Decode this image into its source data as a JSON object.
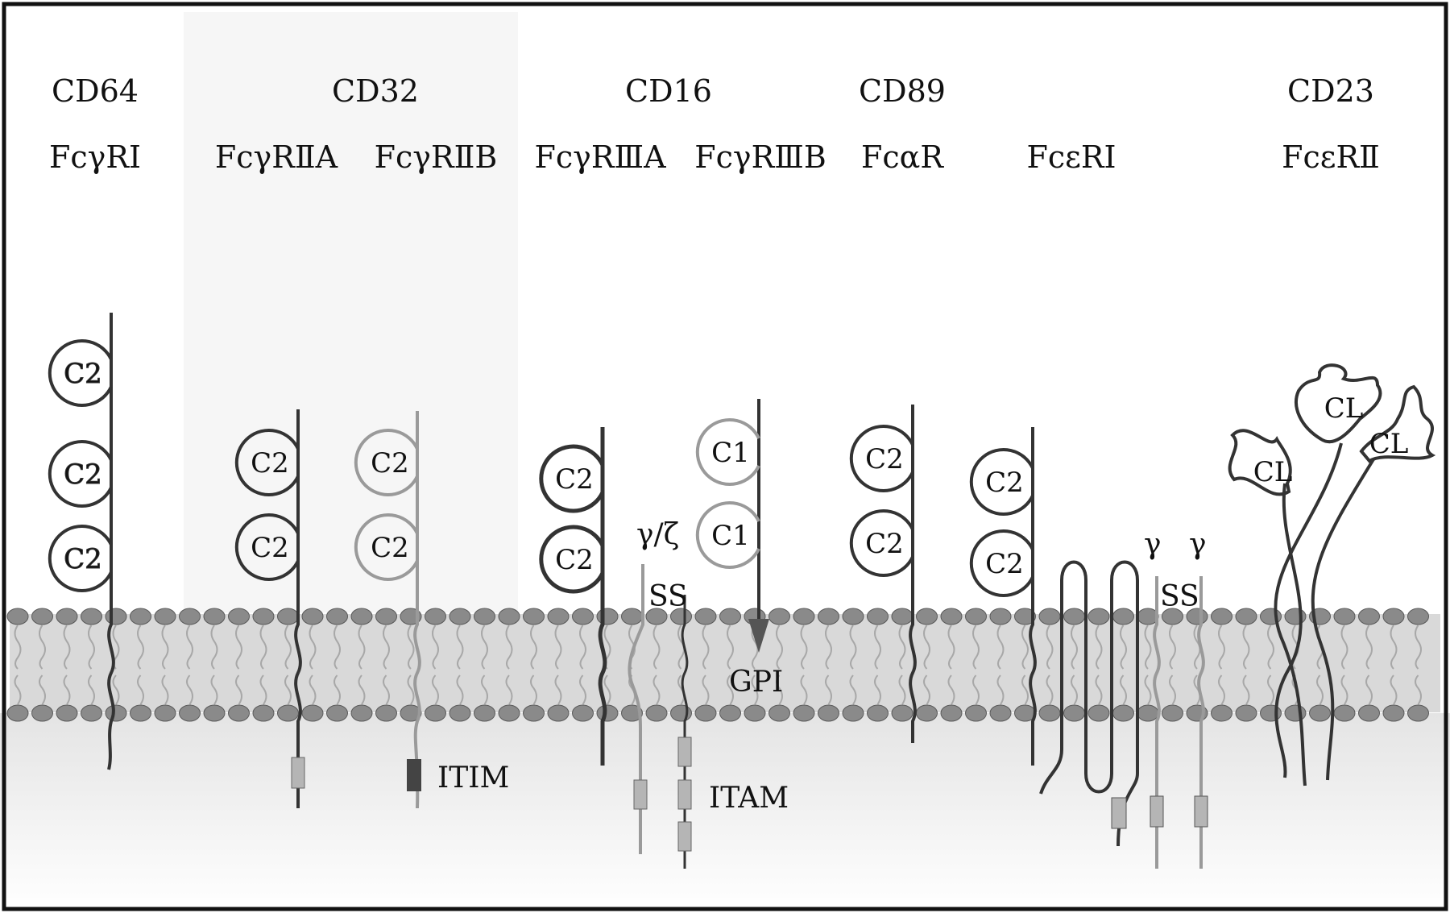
{
  "receptors": [
    {
      "cd": "CD64",
      "name": "FcγRⅠ"
    },
    {
      "cd": "CD32",
      "names": [
        "FcγRⅡA",
        "FcγRⅡB"
      ]
    },
    {
      "cd": "CD16",
      "names": [
        "FcγRⅢA",
        "FcγRⅢB"
      ]
    },
    {
      "cd": "CD89",
      "name": "FcαR"
    },
    {
      "name": "FcεRⅠ"
    },
    {
      "cd": "CD23",
      "name": "FcεRⅡ"
    }
  ],
  "domains": {
    "c2": "C2",
    "c1": "C1",
    "cl": "CL"
  },
  "annotations": {
    "itim": "ITIM",
    "itam": "ITAM",
    "gpi": "GPI",
    "ss": "SS",
    "gamma_zeta": "γ/ζ",
    "gamma": "γ"
  },
  "colors": {
    "dark_chain": "#333333",
    "light_chain": "#9a9a9a",
    "membrane_band": "#d9d9d9",
    "headgroup": "#8a8a8a",
    "itim_box": "#444444",
    "motif_box": "#b5b5b5"
  }
}
